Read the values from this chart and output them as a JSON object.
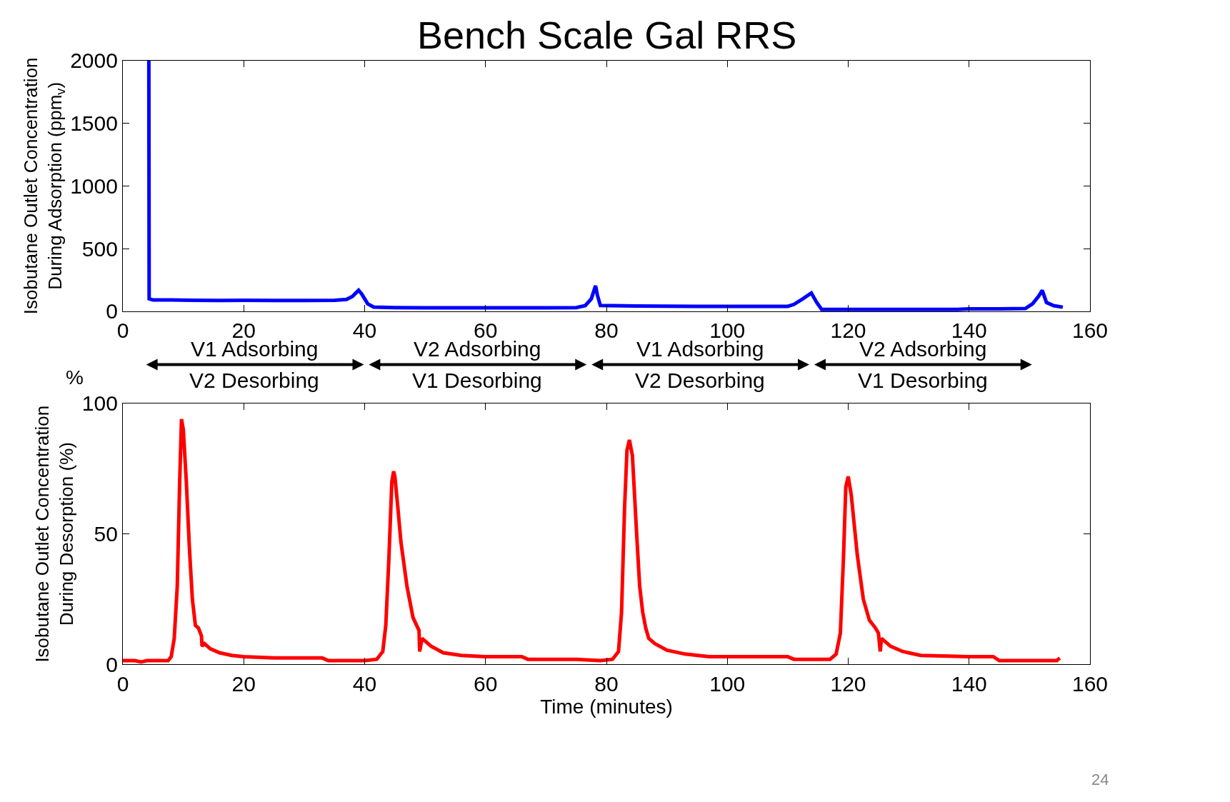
{
  "chart_data": [
    {
      "type": "line",
      "title": "Bench Scale Gal RRS",
      "ylabel": "Isobutane Outlet Concentration\nDuring Adsorption (ppm$_{v}$)",
      "xlim": [
        0,
        160
      ],
      "xticks": [
        0,
        20,
        40,
        60,
        80,
        100,
        120,
        140,
        160
      ],
      "ylim": [
        0,
        2000
      ],
      "yticks": [
        0,
        500,
        1000,
        1500,
        2000
      ],
      "annotations": [
        "V1 Adsorbing\nV2 Desorbing",
        "V2 Adsorbing\nV1 Desorbing",
        "V1 Adsorbing\nV2 Desorbing",
        "V2 Adsorbing\nV1 Desorbing"
      ],
      "series": [
        {
          "color": "#0000ff",
          "x": [
            4.3,
            4.35,
            5,
            8,
            12,
            16,
            20,
            25,
            30,
            35,
            37,
            38,
            39,
            39.5,
            40.5,
            41.5,
            45,
            50,
            60,
            70,
            75,
            76.5,
            77.5,
            78.2,
            78.5,
            79,
            85,
            95,
            105,
            110,
            111,
            112.5,
            113.9,
            114.8,
            115.6,
            120,
            130,
            138,
            140,
            145,
            149.3,
            150.5,
            151.5,
            152.1,
            152.8,
            154,
            155.5
          ],
          "values": [
            2000,
            100,
            90,
            90,
            88,
            87,
            88,
            87,
            87,
            88,
            95,
            120,
            168,
            140,
            60,
            34,
            30,
            28,
            28,
            28,
            30,
            45,
            100,
            204,
            130,
            46,
            42,
            40,
            40,
            40,
            55,
            100,
            146,
            70,
            15,
            15,
            15,
            15,
            20,
            20,
            22,
            60,
            120,
            167,
            70,
            45,
            33
          ]
        }
      ]
    },
    {
      "type": "line",
      "xlabel": "Time (minutes)",
      "ylabel": "Isobutane Outlet Concentration\nDuring Desorption (%)",
      "xlim": [
        0,
        160
      ],
      "xticks": [
        0,
        20,
        40,
        60,
        80,
        100,
        120,
        140,
        160
      ],
      "ylim": [
        0,
        100
      ],
      "yticks": [
        0,
        50,
        100
      ],
      "annotations": [
        "%",
        "24"
      ],
      "series": [
        {
          "color": "#ff0000",
          "x": [
            0,
            2,
            3,
            4,
            7.5,
            8,
            8.5,
            9,
            9.4,
            9.7,
            10,
            10.5,
            11,
            11.5,
            12,
            12.5,
            13,
            13.1,
            13.5,
            14.5,
            16,
            18,
            20,
            25,
            33,
            34,
            40,
            42,
            43,
            43.5,
            44,
            44.5,
            44.8,
            45,
            45.5,
            46,
            47,
            48,
            48.6,
            49,
            49.1,
            49.5,
            51,
            53,
            56,
            60,
            66,
            67,
            75,
            79,
            81,
            82,
            82.5,
            83,
            83.4,
            83.8,
            84.3,
            85,
            85.5,
            86,
            86.5,
            87,
            88,
            90,
            93,
            97,
            110,
            111,
            117,
            118,
            118.7,
            119.2,
            119.6,
            120,
            120.5,
            121.5,
            122.5,
            123.5,
            124.5,
            125,
            125.3,
            125.5,
            127,
            129,
            132,
            140,
            144,
            145,
            154.5,
            155
          ],
          "values": [
            1.5,
            1.5,
            1,
            1.5,
            1.5,
            3,
            10,
            30,
            70,
            94,
            90,
            70,
            45,
            25,
            15,
            14,
            11,
            7,
            8,
            6,
            4.5,
            3.5,
            3,
            2.5,
            2.5,
            1.5,
            1.5,
            2,
            5,
            15,
            40,
            70,
            74,
            72,
            60,
            47,
            30,
            18,
            15,
            13,
            5,
            10,
            7,
            4.5,
            3.5,
            3,
            3,
            2,
            2,
            1.5,
            2,
            5,
            20,
            60,
            82,
            86,
            80,
            50,
            30,
            20,
            14,
            10,
            8,
            5.5,
            4,
            3,
            3,
            2,
            2,
            4,
            12,
            40,
            68,
            72,
            65,
            42,
            25,
            17,
            14,
            12,
            5,
            10,
            7,
            5,
            3.5,
            3,
            3,
            1.5,
            1.5,
            2.5
          ]
        }
      ]
    }
  ]
}
